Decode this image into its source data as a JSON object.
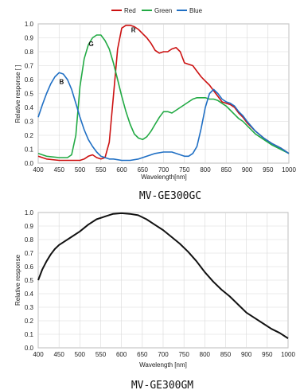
{
  "chart_data": [
    {
      "type": "line",
      "legend": {
        "placement": "top",
        "entries": [
          "Red",
          "Green",
          "Blue"
        ]
      },
      "xlabel": "Wavelength[nm]",
      "ylabel": "Relative response [ ]",
      "xlim": [
        400,
        1000
      ],
      "ylim": [
        0,
        1.0
      ],
      "xticks": [
        "400",
        "450",
        "500",
        "550",
        "600",
        "650",
        "700",
        "750",
        "800",
        "850",
        "900",
        "950",
        "1000"
      ],
      "yticks": [
        "0.0",
        "0.1",
        "0.2",
        "0.3",
        "0.4",
        "0.5",
        "0.6",
        "0.7",
        "0.8",
        "0.9",
        "1.0"
      ],
      "grid": true,
      "caption": "MV-GE300GC",
      "annotations": [
        {
          "text": "R",
          "x": 628,
          "y": 0.94
        },
        {
          "text": "G",
          "x": 527,
          "y": 0.84
        },
        {
          "text": "B",
          "x": 456,
          "y": 0.57
        }
      ],
      "series": [
        {
          "name": "Red",
          "color": "#cc1111",
          "x": [
            400,
            420,
            450,
            480,
            500,
            510,
            520,
            530,
            540,
            550,
            560,
            570,
            580,
            590,
            600,
            610,
            620,
            630,
            640,
            650,
            660,
            670,
            680,
            690,
            700,
            710,
            720,
            730,
            740,
            750,
            760,
            770,
            780,
            790,
            800,
            810,
            820,
            830,
            840,
            850,
            860,
            870,
            880,
            890,
            900,
            920,
            940,
            960,
            980,
            1000
          ],
          "y": [
            0.05,
            0.03,
            0.02,
            0.02,
            0.02,
            0.03,
            0.05,
            0.06,
            0.04,
            0.03,
            0.04,
            0.15,
            0.48,
            0.82,
            0.97,
            0.99,
            0.99,
            0.98,
            0.96,
            0.93,
            0.9,
            0.86,
            0.81,
            0.79,
            0.8,
            0.8,
            0.82,
            0.83,
            0.8,
            0.72,
            0.71,
            0.7,
            0.66,
            0.62,
            0.59,
            0.56,
            0.52,
            0.48,
            0.44,
            0.43,
            0.42,
            0.4,
            0.36,
            0.33,
            0.29,
            0.23,
            0.18,
            0.14,
            0.11,
            0.07
          ]
        },
        {
          "name": "Green",
          "color": "#22aa44",
          "x": [
            400,
            420,
            450,
            470,
            480,
            490,
            500,
            510,
            520,
            530,
            540,
            550,
            560,
            570,
            580,
            590,
            600,
            610,
            620,
            630,
            640,
            650,
            660,
            670,
            680,
            690,
            700,
            710,
            720,
            730,
            740,
            750,
            760,
            770,
            780,
            790,
            800,
            810,
            820,
            830,
            840,
            850,
            860,
            870,
            880,
            890,
            900,
            920,
            940,
            960,
            980,
            1000
          ],
          "y": [
            0.07,
            0.05,
            0.04,
            0.04,
            0.06,
            0.2,
            0.55,
            0.75,
            0.85,
            0.9,
            0.92,
            0.92,
            0.88,
            0.82,
            0.72,
            0.6,
            0.48,
            0.37,
            0.28,
            0.21,
            0.18,
            0.17,
            0.19,
            0.23,
            0.28,
            0.33,
            0.37,
            0.37,
            0.36,
            0.38,
            0.4,
            0.42,
            0.44,
            0.46,
            0.47,
            0.47,
            0.47,
            0.46,
            0.46,
            0.45,
            0.43,
            0.41,
            0.38,
            0.35,
            0.32,
            0.3,
            0.27,
            0.21,
            0.17,
            0.13,
            0.1,
            0.07
          ]
        },
        {
          "name": "Blue",
          "color": "#1f6fc4",
          "x": [
            400,
            410,
            420,
            430,
            440,
            450,
            460,
            470,
            480,
            490,
            500,
            510,
            520,
            530,
            540,
            550,
            560,
            570,
            580,
            600,
            620,
            640,
            660,
            680,
            700,
            720,
            740,
            750,
            760,
            770,
            780,
            790,
            800,
            810,
            820,
            830,
            840,
            850,
            860,
            870,
            880,
            890,
            900,
            920,
            940,
            960,
            980,
            1000
          ],
          "y": [
            0.33,
            0.42,
            0.5,
            0.57,
            0.62,
            0.65,
            0.64,
            0.6,
            0.53,
            0.43,
            0.33,
            0.24,
            0.17,
            0.12,
            0.08,
            0.05,
            0.04,
            0.03,
            0.03,
            0.02,
            0.02,
            0.03,
            0.05,
            0.07,
            0.08,
            0.08,
            0.06,
            0.05,
            0.05,
            0.07,
            0.12,
            0.25,
            0.4,
            0.5,
            0.53,
            0.5,
            0.46,
            0.44,
            0.43,
            0.41,
            0.37,
            0.34,
            0.3,
            0.23,
            0.18,
            0.14,
            0.11,
            0.07
          ]
        }
      ]
    },
    {
      "type": "line",
      "xlabel": "Wavelength [nm]",
      "ylabel": "Relative response",
      "xlim": [
        400,
        1000
      ],
      "ylim": [
        0,
        1.0
      ],
      "xticks": [
        "400",
        "450",
        "500",
        "550",
        "600",
        "650",
        "700",
        "750",
        "800",
        "850",
        "900",
        "950",
        "1000"
      ],
      "yticks": [
        "0.0",
        "0.1",
        "0.2",
        "0.3",
        "0.4",
        "0.5",
        "0.6",
        "0.7",
        "0.8",
        "0.9",
        "1.0"
      ],
      "grid": true,
      "caption": "MV-GE300GM",
      "series": [
        {
          "color": "#111111",
          "x": [
            400,
            410,
            420,
            430,
            440,
            450,
            460,
            480,
            500,
            520,
            540,
            560,
            580,
            600,
            620,
            640,
            660,
            680,
            700,
            720,
            740,
            760,
            780,
            800,
            820,
            840,
            860,
            880,
            900,
            920,
            940,
            960,
            980,
            1000
          ],
          "y": [
            0.5,
            0.58,
            0.64,
            0.69,
            0.73,
            0.76,
            0.78,
            0.82,
            0.86,
            0.91,
            0.95,
            0.97,
            0.99,
            0.995,
            0.99,
            0.98,
            0.95,
            0.91,
            0.87,
            0.82,
            0.77,
            0.71,
            0.64,
            0.56,
            0.49,
            0.43,
            0.38,
            0.32,
            0.26,
            0.22,
            0.18,
            0.14,
            0.11,
            0.07
          ]
        }
      ]
    }
  ]
}
